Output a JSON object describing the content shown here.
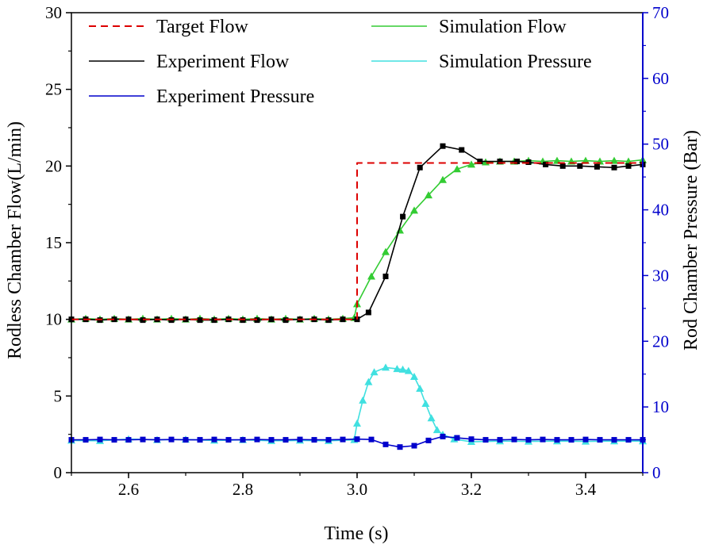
{
  "chart_data": {
    "type": "line",
    "xlabel": "Time (s)",
    "ylabel_left": "Rodless Chamber Flow(L/min)",
    "ylabel_right": "Rod Chamber Pressure (Bar)",
    "xlim": [
      2.5,
      3.5
    ],
    "ylim_left": [
      0,
      30
    ],
    "ylim_right": [
      0,
      70
    ],
    "x_ticks": [
      "2.6",
      "2.8",
      "3.0",
      "3.2",
      "3.4"
    ],
    "y_ticks_left": [
      "0",
      "5",
      "10",
      "15",
      "20",
      "25",
      "30"
    ],
    "y_ticks_right": [
      "0",
      "10",
      "20",
      "30",
      "40",
      "50",
      "60",
      "70"
    ],
    "grid": false,
    "legend_position": "top",
    "colors": {
      "right_axis": "#0000cc"
    },
    "series": [
      {
        "name": "Target Flow",
        "axis": "left",
        "color": "#dd0000",
        "style": "dashed",
        "marker": "none",
        "x": [
          2.5,
          3.0,
          3.0,
          3.5
        ],
        "y": [
          10.0,
          10.0,
          20.2,
          20.2
        ]
      },
      {
        "name": "Simulation Flow",
        "axis": "left",
        "color": "#33cc33",
        "style": "solid",
        "marker": "triangle",
        "x": [
          2.5,
          2.525,
          2.55,
          2.575,
          2.6,
          2.625,
          2.65,
          2.675,
          2.7,
          2.725,
          2.75,
          2.775,
          2.8,
          2.825,
          2.85,
          2.875,
          2.9,
          2.925,
          2.95,
          2.975,
          2.995,
          3.0,
          3.025,
          3.05,
          3.075,
          3.1,
          3.125,
          3.15,
          3.175,
          3.2,
          3.225,
          3.25,
          3.275,
          3.3,
          3.325,
          3.35,
          3.375,
          3.4,
          3.425,
          3.45,
          3.475,
          3.5
        ],
        "y": [
          10.0,
          10.05,
          10.0,
          10.05,
          10.0,
          10.05,
          10.0,
          10.05,
          10.0,
          10.05,
          10.0,
          10.05,
          10.0,
          10.05,
          10.0,
          10.05,
          10.0,
          10.05,
          10.0,
          10.05,
          10.1,
          11.0,
          12.8,
          14.4,
          15.8,
          17.1,
          18.1,
          19.1,
          19.8,
          20.1,
          20.25,
          20.3,
          20.3,
          20.35,
          20.3,
          20.35,
          20.3,
          20.35,
          20.3,
          20.35,
          20.3,
          20.4
        ]
      },
      {
        "name": "Experiment Flow",
        "axis": "left",
        "color": "#000000",
        "style": "solid",
        "marker": "square",
        "x": [
          2.5,
          2.525,
          2.55,
          2.575,
          2.6,
          2.625,
          2.65,
          2.675,
          2.7,
          2.725,
          2.75,
          2.775,
          2.8,
          2.825,
          2.85,
          2.875,
          2.9,
          2.925,
          2.95,
          2.975,
          3.0,
          3.02,
          3.05,
          3.08,
          3.11,
          3.15,
          3.183,
          3.215,
          3.25,
          3.28,
          3.3,
          3.33,
          3.36,
          3.39,
          3.42,
          3.45,
          3.475,
          3.5
        ],
        "y": [
          10.0,
          10.0,
          9.95,
          10.0,
          10.0,
          9.95,
          10.0,
          9.95,
          10.0,
          9.95,
          9.95,
          10.0,
          9.95,
          9.95,
          10.0,
          9.95,
          10.0,
          10.0,
          9.95,
          10.0,
          10.0,
          10.45,
          12.8,
          16.7,
          19.9,
          21.3,
          21.05,
          20.3,
          20.3,
          20.3,
          20.25,
          20.1,
          20.0,
          20.0,
          19.95,
          19.9,
          20.0,
          20.1
        ]
      },
      {
        "name": "Simulation Pressure",
        "axis": "right",
        "color": "#40e0e0",
        "style": "solid",
        "marker": "triangle",
        "x": [
          2.5,
          2.55,
          2.6,
          2.65,
          2.7,
          2.75,
          2.8,
          2.85,
          2.9,
          2.95,
          2.995,
          3.0,
          3.01,
          3.02,
          3.03,
          3.05,
          3.07,
          3.08,
          3.09,
          3.1,
          3.11,
          3.12,
          3.13,
          3.14,
          3.15,
          3.17,
          3.2,
          3.25,
          3.3,
          3.35,
          3.4,
          3.45,
          3.5
        ],
        "y": [
          4.9,
          4.85,
          5.1,
          5.0,
          5.05,
          4.9,
          5.0,
          4.85,
          4.9,
          4.85,
          5.0,
          7.5,
          11.0,
          13.8,
          15.3,
          16.0,
          15.8,
          15.7,
          15.5,
          14.6,
          12.8,
          10.5,
          8.3,
          6.5,
          5.8,
          5.1,
          4.7,
          4.8,
          4.75,
          4.8,
          4.75,
          4.8,
          4.8
        ]
      },
      {
        "name": "Experiment Pressure",
        "axis": "right",
        "color": "#0000cc",
        "style": "solid",
        "marker": "square",
        "x": [
          2.5,
          2.525,
          2.55,
          2.575,
          2.6,
          2.625,
          2.65,
          2.675,
          2.7,
          2.725,
          2.75,
          2.775,
          2.8,
          2.825,
          2.85,
          2.875,
          2.9,
          2.925,
          2.95,
          2.975,
          3.0,
          3.025,
          3.05,
          3.075,
          3.1,
          3.125,
          3.15,
          3.175,
          3.2,
          3.225,
          3.25,
          3.275,
          3.3,
          3.325,
          3.35,
          3.375,
          3.4,
          3.425,
          3.45,
          3.475,
          3.5
        ],
        "y": [
          5.0,
          5.0,
          5.05,
          5.0,
          5.0,
          5.05,
          5.0,
          5.05,
          5.0,
          5.0,
          5.05,
          5.0,
          5.0,
          5.05,
          5.0,
          5.0,
          5.05,
          5.0,
          5.0,
          5.05,
          5.1,
          5.05,
          4.3,
          3.9,
          4.1,
          4.9,
          5.5,
          5.3,
          5.1,
          5.0,
          5.0,
          5.05,
          5.0,
          5.05,
          5.0,
          5.0,
          5.05,
          5.0,
          5.0,
          5.0,
          5.0
        ]
      }
    ],
    "legend": [
      {
        "label": "Target Flow",
        "series": 0
      },
      {
        "label": "Simulation Flow",
        "series": 1
      },
      {
        "label": "Experiment Flow",
        "series": 2
      },
      {
        "label": "Simulation Pressure",
        "series": 3
      },
      {
        "label": "Experiment Pressure",
        "series": 4
      }
    ]
  }
}
